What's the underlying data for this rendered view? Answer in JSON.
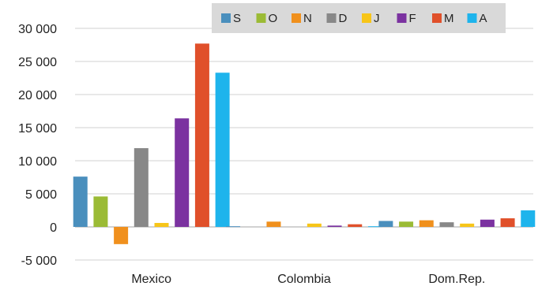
{
  "chart_data": {
    "type": "bar",
    "categories": [
      "Mexico",
      "Colombia",
      "Dom.Rep."
    ],
    "series": [
      {
        "name": "S",
        "color": "#4a8fbd",
        "values": [
          7600,
          100,
          900
        ]
      },
      {
        "name": "O",
        "color": "#9bbb35",
        "values": [
          4600,
          0,
          800
        ]
      },
      {
        "name": "N",
        "color": "#f0901d",
        "values": [
          -2600,
          800,
          1000
        ]
      },
      {
        "name": "D",
        "color": "#888888",
        "values": [
          11900,
          0,
          700
        ]
      },
      {
        "name": "J",
        "color": "#f7c518",
        "values": [
          600,
          500,
          500
        ]
      },
      {
        "name": "F",
        "color": "#7b32a0",
        "values": [
          16400,
          200,
          1100
        ]
      },
      {
        "name": "M",
        "color": "#e0502a",
        "values": [
          27700,
          400,
          1300
        ]
      },
      {
        "name": "A",
        "color": "#1eb4ec",
        "values": [
          23300,
          100,
          2500
        ]
      }
    ],
    "yticks": [
      {
        "value": 30000,
        "label": "30 000"
      },
      {
        "value": 25000,
        "label": "25 000"
      },
      {
        "value": 20000,
        "label": "20 000"
      },
      {
        "value": 15000,
        "label": "15 000"
      },
      {
        "value": 10000,
        "label": "10 000"
      },
      {
        "value": 5000,
        "label": "5 000"
      },
      {
        "value": 0,
        "label": "0"
      },
      {
        "value": -5000,
        "label": "-5 000"
      }
    ],
    "ylim": [
      -5000,
      30000
    ],
    "grid": true,
    "legend": "top-right",
    "title": "",
    "xlabel": "",
    "ylabel": ""
  }
}
